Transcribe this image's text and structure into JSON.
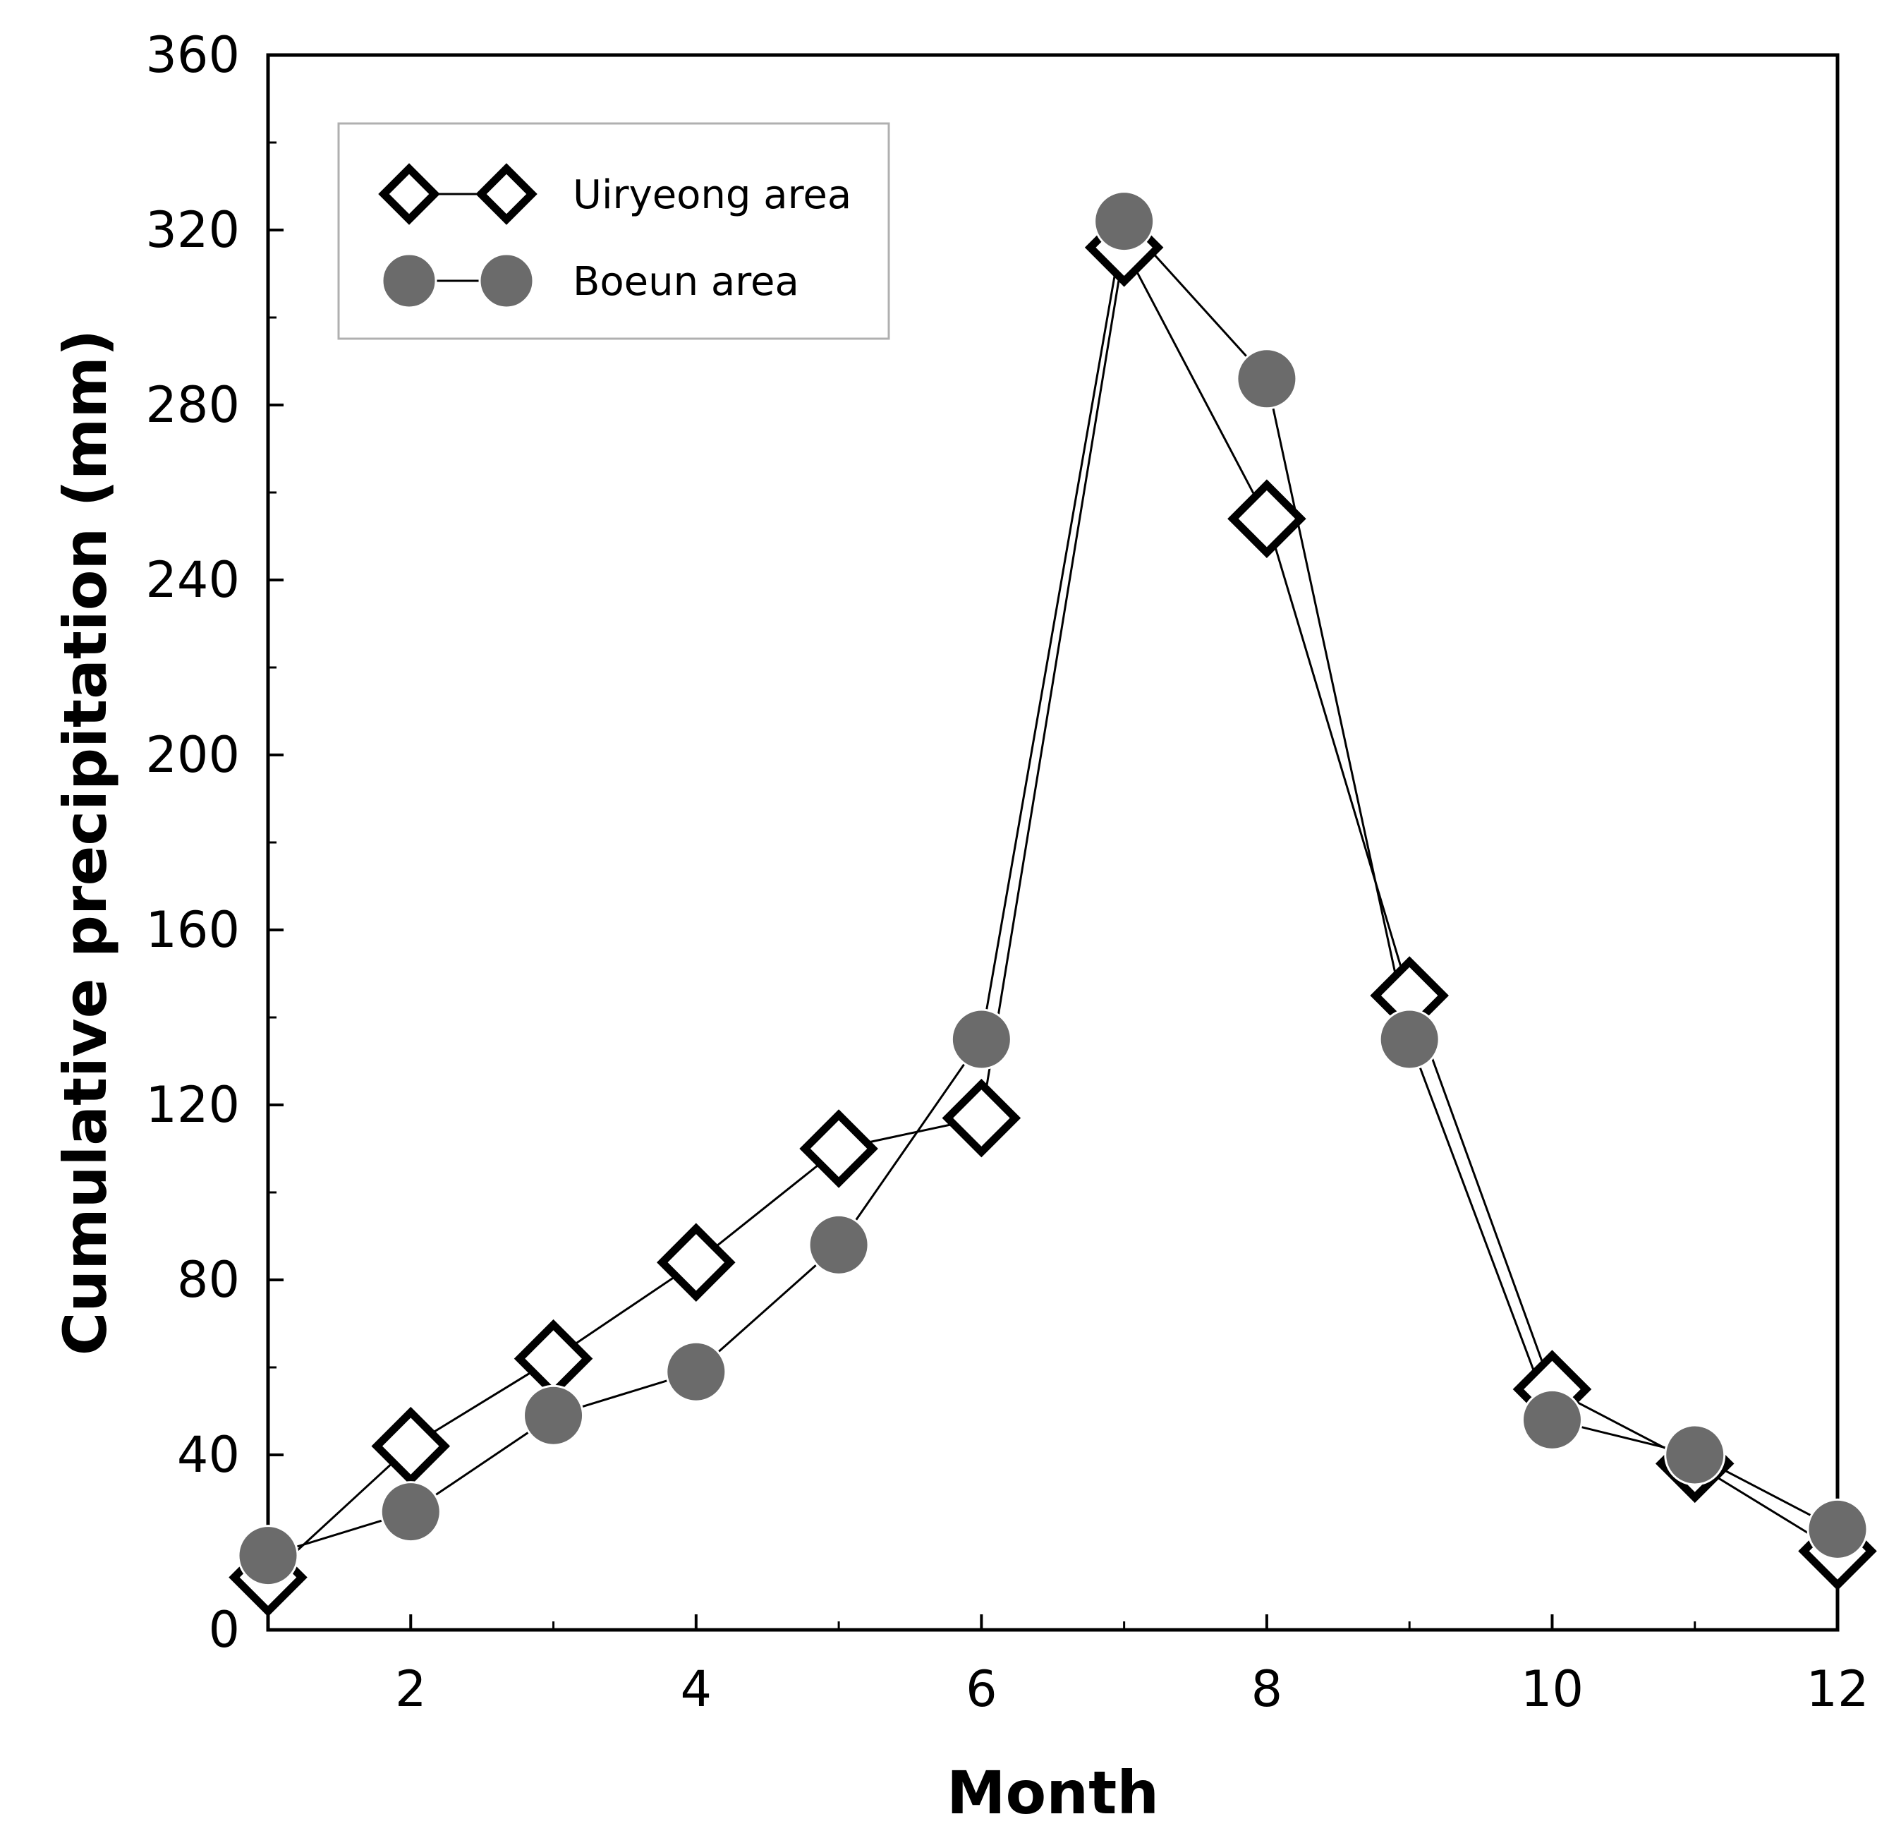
{
  "chart_data": {
    "type": "line",
    "title": "",
    "xlabel": "Month",
    "ylabel": "Cumulative precipitation (mm)",
    "xlim": [
      1,
      12
    ],
    "ylim": [
      0,
      360
    ],
    "x_ticks": [
      2,
      4,
      6,
      8,
      10,
      12
    ],
    "y_ticks": [
      0,
      40,
      80,
      120,
      160,
      200,
      240,
      280,
      320,
      360
    ],
    "x": [
      1,
      2,
      3,
      4,
      5,
      6,
      7,
      8,
      9,
      10,
      11,
      12
    ],
    "grid": false,
    "legend_position": "top-left",
    "series": [
      {
        "name": "Uiryeong area",
        "marker": "diamond-open",
        "color": "#000000",
        "values": [
          12,
          42,
          62,
          84,
          110,
          117,
          316,
          254,
          145,
          55,
          38,
          18
        ]
      },
      {
        "name": "Boeun area",
        "marker": "circle-filled",
        "color": "#6b6b6b",
        "values": [
          17,
          27,
          49,
          59,
          88,
          135,
          322,
          286,
          135,
          48,
          40,
          23
        ]
      }
    ]
  }
}
